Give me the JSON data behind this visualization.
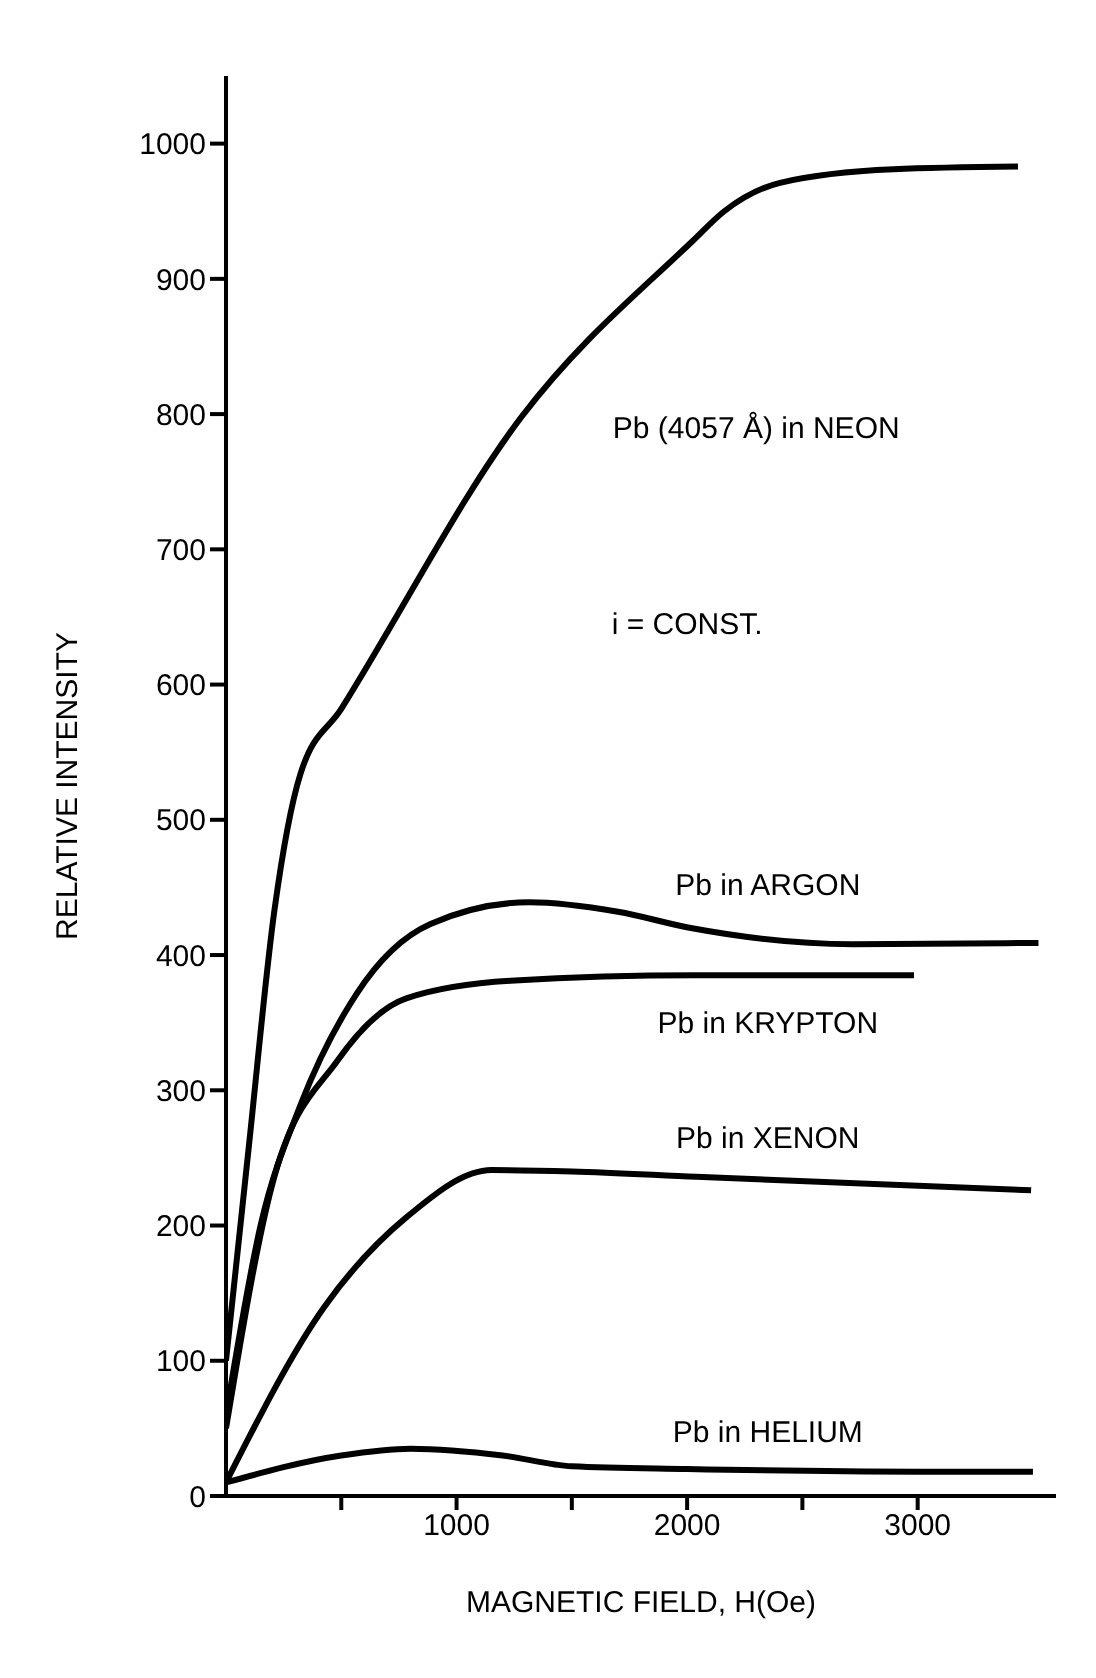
{
  "chart_data": {
    "type": "line",
    "xlabel": "MAGNETIC FIELD, H(Oe)",
    "ylabel": "RELATIVE INTENSITY",
    "xlim": [
      0,
      3600
    ],
    "ylim": [
      0,
      1050
    ],
    "xticks": [
      {
        "value": 500,
        "label": null
      },
      1000,
      {
        "value": 1500,
        "label": null
      },
      2000,
      {
        "value": 2500,
        "label": null
      },
      3000
    ],
    "yticks": [
      0,
      100,
      200,
      300,
      400,
      500,
      600,
      700,
      800,
      900,
      1000
    ],
    "annotations": [
      "i = CONST."
    ],
    "grid": false,
    "marker": "none",
    "line_style": "solid",
    "series": [
      {
        "name": "Pb (4057 Å) in NEON",
        "color": "#000000",
        "x": [
          0,
          100,
          210,
          323,
          500,
          1282,
          2024,
          2161,
          2403,
          2895,
          3435
        ],
        "values": [
          100,
          260,
          433,
          534,
          582,
          798,
          928,
          950,
          971,
          981,
          983
        ]
      },
      {
        "name": "Pb in ARGON",
        "color": "#000000",
        "x": [
          0,
          150,
          323,
          565,
          887,
          1315,
          1700,
          2016,
          2718,
          3524
        ],
        "values": [
          60,
          200,
          289,
          371,
          423,
          439,
          432,
          420,
          408,
          409
        ]
      },
      {
        "name": "Pb in KRYPTON",
        "color": "#000000",
        "x": [
          0,
          200,
          484,
          782,
          1234,
          2040,
          2984
        ],
        "values": [
          50,
          230,
          322,
          368,
          381,
          385,
          385
        ]
      },
      {
        "name": "Pb in XENON",
        "color": "#000000",
        "x": [
          0,
          427,
          782,
          1153,
          1500,
          2040,
          3492
        ],
        "values": [
          10,
          140,
          206,
          241,
          240,
          236,
          226
        ]
      },
      {
        "name": "Pb in HELIUM",
        "color": "#000000",
        "x": [
          0,
          500,
          800,
          1200,
          1500,
          2000,
          3000,
          3500
        ],
        "values": [
          10,
          30,
          35,
          30,
          22,
          20,
          18,
          18
        ]
      }
    ]
  }
}
